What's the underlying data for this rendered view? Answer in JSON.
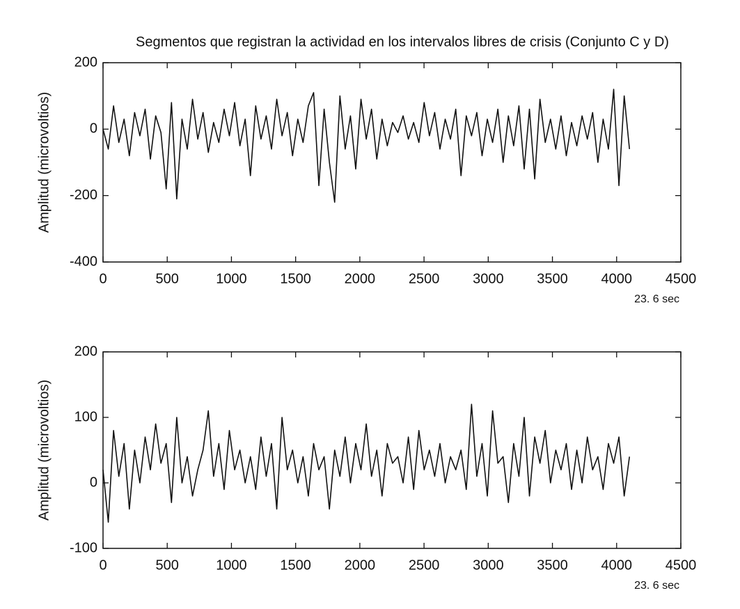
{
  "chart_data": [
    {
      "type": "line",
      "title": "Segmentos que registran la actividad en los intervalos libres de crisis (Conjunto C y D)",
      "ylabel": "Amplitud (microvoltios)",
      "annotation": "23. 6 sec",
      "color": "#111111",
      "xlim": [
        0,
        4500
      ],
      "xticks": [
        0,
        500,
        1000,
        1500,
        2000,
        2500,
        3000,
        3500,
        4000,
        4500
      ],
      "ylim": [
        -400,
        200
      ],
      "yticks": [
        -400,
        -200,
        0,
        200
      ],
      "x": [
        0,
        41,
        82,
        123,
        164,
        205,
        246,
        287,
        328,
        369,
        410,
        451,
        492,
        533,
        574,
        615,
        656,
        697,
        738,
        779,
        820,
        861,
        902,
        943,
        984,
        1025,
        1066,
        1107,
        1148,
        1189,
        1230,
        1271,
        1312,
        1353,
        1394,
        1435,
        1476,
        1517,
        1558,
        1599,
        1640,
        1681,
        1722,
        1763,
        1804,
        1845,
        1886,
        1927,
        1968,
        2009,
        2050,
        2091,
        2132,
        2173,
        2214,
        2255,
        2296,
        2337,
        2378,
        2419,
        2460,
        2501,
        2542,
        2583,
        2624,
        2665,
        2706,
        2747,
        2788,
        2829,
        2870,
        2911,
        2952,
        2993,
        3034,
        3075,
        3116,
        3157,
        3198,
        3239,
        3280,
        3321,
        3362,
        3403,
        3444,
        3485,
        3526,
        3567,
        3608,
        3649,
        3690,
        3731,
        3772,
        3813,
        3854,
        3895,
        3936,
        3977,
        4018,
        4059,
        4100
      ],
      "values": [
        0,
        -60,
        70,
        -40,
        30,
        -80,
        50,
        -20,
        60,
        -90,
        40,
        -10,
        -180,
        80,
        -210,
        30,
        -60,
        90,
        -30,
        50,
        -70,
        20,
        -40,
        60,
        -20,
        80,
        -50,
        30,
        -140,
        70,
        -30,
        40,
        -60,
        90,
        -20,
        50,
        -80,
        30,
        -40,
        70,
        110,
        -170,
        60,
        -100,
        -220,
        100,
        -60,
        40,
        -120,
        90,
        -30,
        60,
        -90,
        30,
        -50,
        20,
        -10,
        40,
        -30,
        20,
        -40,
        80,
        -20,
        50,
        -60,
        30,
        -30,
        60,
        -140,
        40,
        -20,
        50,
        -80,
        30,
        -40,
        60,
        -100,
        40,
        -50,
        70,
        -120,
        60,
        -150,
        90,
        -40,
        30,
        -60,
        40,
        -80,
        20,
        -50,
        40,
        -30,
        50,
        -100,
        30,
        -60,
        120,
        -170,
        100,
        -60
      ]
    },
    {
      "type": "line",
      "ylabel": "Amplitud (microvoltios)",
      "annotation": "23. 6 sec",
      "color": "#111111",
      "xlim": [
        0,
        4500
      ],
      "xticks": [
        0,
        500,
        1000,
        1500,
        2000,
        2500,
        3000,
        3500,
        4000,
        4500
      ],
      "ylim": [
        -100,
        200
      ],
      "yticks": [
        -100,
        0,
        100,
        200
      ],
      "x": [
        0,
        41,
        82,
        123,
        164,
        205,
        246,
        287,
        328,
        369,
        410,
        451,
        492,
        533,
        574,
        615,
        656,
        697,
        738,
        779,
        820,
        861,
        902,
        943,
        984,
        1025,
        1066,
        1107,
        1148,
        1189,
        1230,
        1271,
        1312,
        1353,
        1394,
        1435,
        1476,
        1517,
        1558,
        1599,
        1640,
        1681,
        1722,
        1763,
        1804,
        1845,
        1886,
        1927,
        1968,
        2009,
        2050,
        2091,
        2132,
        2173,
        2214,
        2255,
        2296,
        2337,
        2378,
        2419,
        2460,
        2501,
        2542,
        2583,
        2624,
        2665,
        2706,
        2747,
        2788,
        2829,
        2870,
        2911,
        2952,
        2993,
        3034,
        3075,
        3116,
        3157,
        3198,
        3239,
        3280,
        3321,
        3362,
        3403,
        3444,
        3485,
        3526,
        3567,
        3608,
        3649,
        3690,
        3731,
        3772,
        3813,
        3854,
        3895,
        3936,
        3977,
        4018,
        4059,
        4100
      ],
      "values": [
        20,
        -60,
        80,
        10,
        60,
        -40,
        50,
        0,
        70,
        20,
        90,
        30,
        60,
        -30,
        100,
        0,
        40,
        -20,
        20,
        50,
        110,
        10,
        60,
        -10,
        80,
        20,
        50,
        0,
        40,
        -10,
        70,
        10,
        60,
        -40,
        100,
        20,
        50,
        0,
        40,
        -20,
        60,
        20,
        40,
        -40,
        50,
        10,
        70,
        0,
        60,
        20,
        90,
        10,
        50,
        -20,
        60,
        30,
        40,
        0,
        70,
        -10,
        80,
        20,
        50,
        10,
        60,
        0,
        40,
        20,
        50,
        -10,
        120,
        10,
        60,
        -20,
        110,
        30,
        40,
        -30,
        60,
        10,
        100,
        -20,
        70,
        30,
        80,
        0,
        50,
        20,
        60,
        -10,
        50,
        0,
        70,
        20,
        40,
        -10,
        60,
        30,
        70,
        -20,
        40
      ]
    }
  ]
}
